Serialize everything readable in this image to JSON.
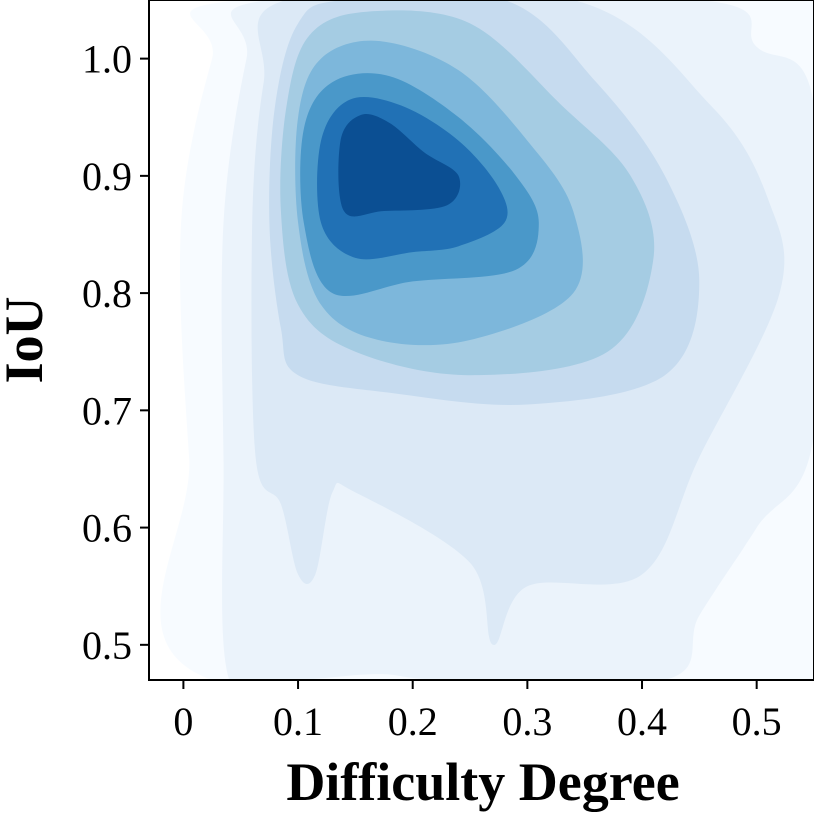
{
  "chart_data": {
    "type": "heatmap",
    "subtype": "kde-contour",
    "xlabel": "Difficulty Degree",
    "ylabel": "IoU",
    "xlim": [
      -0.03,
      0.55
    ],
    "ylim": [
      0.47,
      1.05
    ],
    "xticks": [
      0,
      0.1,
      0.2,
      0.3,
      0.4,
      0.5
    ],
    "xtick_labels": [
      "0",
      "0.1",
      "0.2",
      "0.3",
      "0.4",
      "0.5"
    ],
    "yticks": [
      0.5,
      0.6,
      0.7,
      0.8,
      0.9,
      1.0
    ],
    "ytick_labels": [
      "0.5",
      "0.6",
      "0.7",
      "0.8",
      "0.9",
      "1.0"
    ],
    "grid": false,
    "colormap": "Blues",
    "level_colors": [
      "#f7fbff",
      "#ebf3fb",
      "#dce9f6",
      "#c6dbef",
      "#a5cce3",
      "#7db7db",
      "#4a98c9",
      "#2171b5",
      "#0b4f93"
    ],
    "density_peak": {
      "x": 0.17,
      "y": 0.89
    },
    "contour_levels": [
      {
        "level": 1,
        "points": [
          [
            0.025,
            0.47
          ],
          [
            0.005,
            0.66
          ],
          [
            -0.002,
            0.86
          ],
          [
            0.025,
            1.0
          ],
          [
            0.05,
            1.05
          ],
          [
            0.55,
            1.05
          ],
          [
            0.55,
            0.47
          ]
        ]
      },
      {
        "level": 2,
        "points": [
          [
            0.04,
            0.47
          ],
          [
            0.035,
            0.66
          ],
          [
            0.035,
            0.86
          ],
          [
            0.055,
            1.0
          ],
          [
            0.075,
            1.05
          ],
          [
            0.45,
            1.05
          ],
          [
            0.5,
            1.01
          ],
          [
            0.55,
            0.96
          ],
          [
            0.55,
            0.68
          ],
          [
            0.5,
            0.6
          ],
          [
            0.45,
            0.525
          ],
          [
            0.42,
            0.47
          ],
          [
            0.23,
            0.47
          ],
          [
            0.17,
            0.475
          ],
          [
            0.1,
            0.47
          ]
        ]
      },
      {
        "level": 3,
        "points": [
          [
            0.063,
            0.66
          ],
          [
            0.06,
            0.86
          ],
          [
            0.07,
            0.98
          ],
          [
            0.09,
            1.05
          ],
          [
            0.34,
            1.05
          ],
          [
            0.46,
            0.96
          ],
          [
            0.51,
            0.88
          ],
          [
            0.52,
            0.8
          ],
          [
            0.45,
            0.66
          ],
          [
            0.4,
            0.56
          ],
          [
            0.3,
            0.55
          ],
          [
            0.27,
            0.5
          ],
          [
            0.25,
            0.57
          ],
          [
            0.15,
            0.63
          ],
          [
            0.13,
            0.63
          ],
          [
            0.115,
            0.56
          ],
          [
            0.1,
            0.56
          ],
          [
            0.085,
            0.62
          ]
        ]
      },
      {
        "level": 4,
        "points": [
          [
            0.085,
            0.77
          ],
          [
            0.075,
            0.86
          ],
          [
            0.08,
            0.96
          ],
          [
            0.1,
            1.03
          ],
          [
            0.14,
            1.05
          ],
          [
            0.28,
            1.05
          ],
          [
            0.36,
            0.98
          ],
          [
            0.42,
            0.9
          ],
          [
            0.45,
            0.81
          ],
          [
            0.42,
            0.73
          ],
          [
            0.3,
            0.705
          ],
          [
            0.18,
            0.715
          ],
          [
            0.1,
            0.73
          ]
        ]
      },
      {
        "level": 5,
        "points": [
          [
            0.1,
            0.79
          ],
          [
            0.085,
            0.87
          ],
          [
            0.09,
            0.96
          ],
          [
            0.11,
            1.02
          ],
          [
            0.16,
            1.04
          ],
          [
            0.25,
            1.03
          ],
          [
            0.33,
            0.96
          ],
          [
            0.39,
            0.9
          ],
          [
            0.41,
            0.83
          ],
          [
            0.37,
            0.75
          ],
          [
            0.25,
            0.73
          ],
          [
            0.15,
            0.75
          ]
        ]
      },
      {
        "level": 6,
        "points": [
          [
            0.12,
            0.79
          ],
          [
            0.1,
            0.86
          ],
          [
            0.1,
            0.95
          ],
          [
            0.12,
            1.0
          ],
          [
            0.17,
            1.015
          ],
          [
            0.24,
            0.99
          ],
          [
            0.3,
            0.93
          ],
          [
            0.34,
            0.87
          ],
          [
            0.34,
            0.8
          ],
          [
            0.25,
            0.76
          ],
          [
            0.17,
            0.76
          ]
        ]
      },
      {
        "level": 7,
        "points": [
          [
            0.13,
            0.8
          ],
          [
            0.105,
            0.86
          ],
          [
            0.105,
            0.94
          ],
          [
            0.13,
            0.98
          ],
          [
            0.18,
            0.985
          ],
          [
            0.24,
            0.95
          ],
          [
            0.29,
            0.9
          ],
          [
            0.31,
            0.86
          ],
          [
            0.29,
            0.82
          ],
          [
            0.2,
            0.81
          ]
        ]
      },
      {
        "level": 8,
        "points": [
          [
            0.15,
            0.83
          ],
          [
            0.12,
            0.86
          ],
          [
            0.12,
            0.93
          ],
          [
            0.145,
            0.965
          ],
          [
            0.19,
            0.96
          ],
          [
            0.24,
            0.93
          ],
          [
            0.275,
            0.89
          ],
          [
            0.28,
            0.86
          ],
          [
            0.24,
            0.84
          ],
          [
            0.2,
            0.835
          ]
        ]
      },
      {
        "level": 9,
        "points": [
          [
            0.175,
            0.87
          ],
          [
            0.14,
            0.87
          ],
          [
            0.137,
            0.93
          ],
          [
            0.155,
            0.952
          ],
          [
            0.18,
            0.945
          ],
          [
            0.21,
            0.92
          ],
          [
            0.24,
            0.9
          ],
          [
            0.23,
            0.875
          ]
        ]
      }
    ]
  }
}
